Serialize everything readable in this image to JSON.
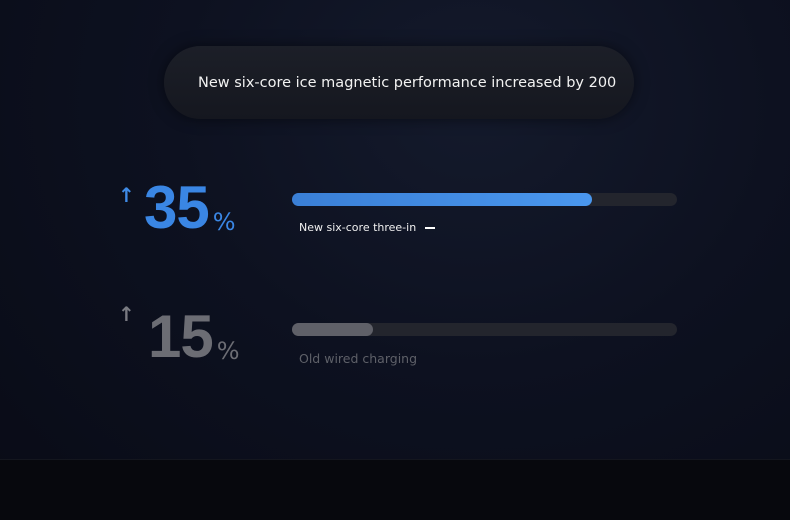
{
  "headline": "New six-core ice magnetic performance increased by 200",
  "items": [
    {
      "value": "35",
      "unit": "%",
      "label": "New six-core three-in",
      "fill": 0.78,
      "color": "#3f8be6",
      "arrow": "up-arrow-icon"
    },
    {
      "value": "15",
      "unit": "%",
      "label": "Old wired charging",
      "fill": 0.21,
      "color": "#6a6b72",
      "arrow": "up-arrow-icon"
    }
  ]
}
